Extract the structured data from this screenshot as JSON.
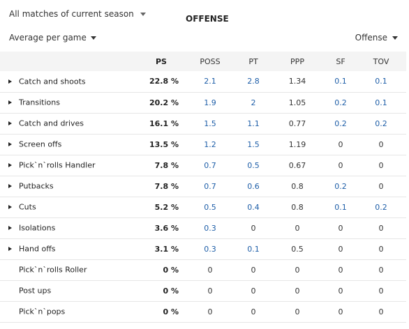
{
  "filters": {
    "season": "All matches of current season",
    "average": "Average per game",
    "category": "Offense"
  },
  "section_title": "OFFENSE",
  "columns": [
    "",
    "PS",
    "POSS",
    "PT",
    "PPP",
    "SF",
    "TOV"
  ],
  "rows": [
    {
      "name": "Catch and shoots",
      "expandable": true,
      "ps": "22.8 %",
      "poss": "2.1",
      "pt": "2.8",
      "ppp": "1.34",
      "sf": "0.1",
      "tov": "0.1",
      "link": [
        true,
        true,
        false,
        true,
        true
      ]
    },
    {
      "name": "Transitions",
      "expandable": true,
      "ps": "20.2 %",
      "poss": "1.9",
      "pt": "2",
      "ppp": "1.05",
      "sf": "0.2",
      "tov": "0.1",
      "link": [
        true,
        true,
        false,
        true,
        true
      ]
    },
    {
      "name": "Catch and drives",
      "expandable": true,
      "ps": "16.1 %",
      "poss": "1.5",
      "pt": "1.1",
      "ppp": "0.77",
      "sf": "0.2",
      "tov": "0.2",
      "link": [
        true,
        true,
        false,
        true,
        true
      ]
    },
    {
      "name": "Screen offs",
      "expandable": true,
      "ps": "13.5 %",
      "poss": "1.2",
      "pt": "1.5",
      "ppp": "1.19",
      "sf": "0",
      "tov": "0",
      "link": [
        true,
        true,
        false,
        false,
        false
      ]
    },
    {
      "name": "Pick`n`rolls Handler",
      "expandable": true,
      "ps": "7.8 %",
      "poss": "0.7",
      "pt": "0.5",
      "ppp": "0.67",
      "sf": "0",
      "tov": "0",
      "link": [
        true,
        true,
        false,
        false,
        false
      ]
    },
    {
      "name": "Putbacks",
      "expandable": true,
      "ps": "7.8 %",
      "poss": "0.7",
      "pt": "0.6",
      "ppp": "0.8",
      "sf": "0.2",
      "tov": "0",
      "link": [
        true,
        true,
        false,
        true,
        false
      ]
    },
    {
      "name": "Cuts",
      "expandable": true,
      "ps": "5.2 %",
      "poss": "0.5",
      "pt": "0.4",
      "ppp": "0.8",
      "sf": "0.1",
      "tov": "0.2",
      "link": [
        true,
        true,
        false,
        true,
        true
      ]
    },
    {
      "name": "Isolations",
      "expandable": true,
      "ps": "3.6 %",
      "poss": "0.3",
      "pt": "0",
      "ppp": "0",
      "sf": "0",
      "tov": "0",
      "link": [
        true,
        false,
        false,
        false,
        false
      ]
    },
    {
      "name": "Hand offs",
      "expandable": true,
      "ps": "3.1 %",
      "poss": "0.3",
      "pt": "0.1",
      "ppp": "0.5",
      "sf": "0",
      "tov": "0",
      "link": [
        true,
        true,
        false,
        false,
        false
      ]
    },
    {
      "name": "Pick`n`rolls Roller",
      "expandable": false,
      "ps": "0 %",
      "poss": "0",
      "pt": "0",
      "ppp": "0",
      "sf": "0",
      "tov": "0",
      "link": [
        false,
        false,
        false,
        false,
        false
      ]
    },
    {
      "name": "Post ups",
      "expandable": false,
      "ps": "0 %",
      "poss": "0",
      "pt": "0",
      "ppp": "0",
      "sf": "0",
      "tov": "0",
      "link": [
        false,
        false,
        false,
        false,
        false
      ]
    },
    {
      "name": "Pick`n`pops",
      "expandable": false,
      "ps": "0 %",
      "poss": "0",
      "pt": "0",
      "ppp": "0",
      "sf": "0",
      "tov": "0",
      "link": [
        false,
        false,
        false,
        false,
        false
      ]
    }
  ],
  "colors": {
    "link": "#1e5ea8",
    "header_band": "#f4f4f4",
    "row_border": "#e6e6e6"
  }
}
